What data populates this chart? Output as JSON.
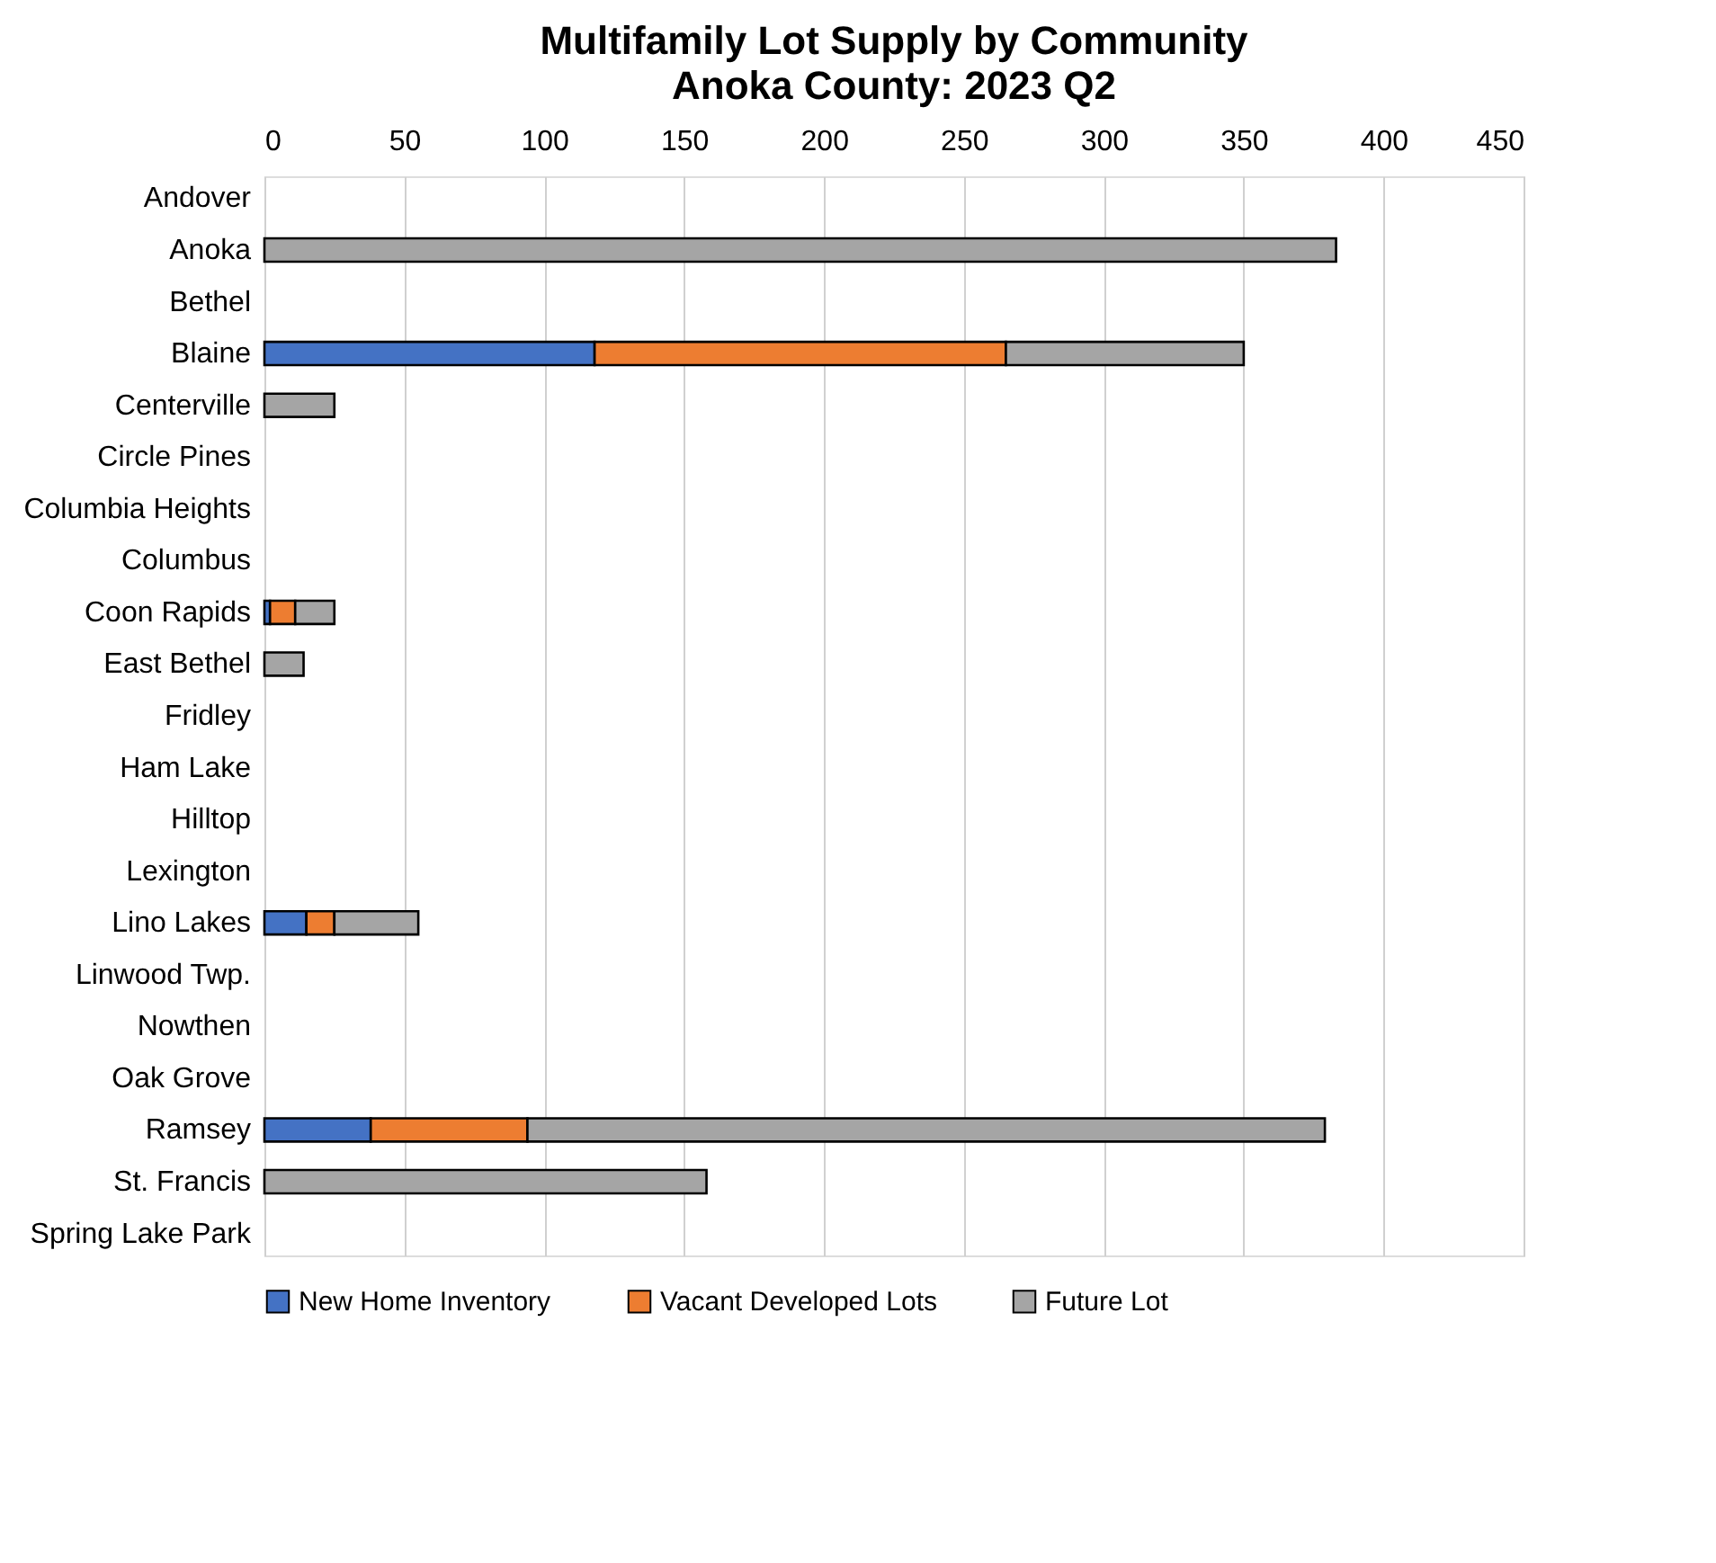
{
  "chart_data": {
    "type": "bar",
    "orientation": "horizontal",
    "stacked": true,
    "title": "Multifamily Lot Supply by Community",
    "subtitle": "Anoka County:  2023 Q2",
    "categories": [
      "Andover",
      "Anoka",
      "Bethel",
      "Blaine",
      "Centerville",
      "Circle Pines",
      "Columbia Heights",
      "Columbus",
      "Coon Rapids",
      "East Bethel",
      "Fridley",
      "Ham Lake",
      "Hilltop",
      "Lexington",
      "Lino Lakes",
      "Linwood Twp.",
      "Nowthen",
      "Oak Grove",
      "Ramsey",
      "St. Francis",
      "Spring Lake Park"
    ],
    "series": [
      {
        "name": "New Home Inventory",
        "color": "#4472c4",
        "values": [
          0,
          0,
          0,
          118,
          0,
          0,
          0,
          0,
          2,
          0,
          0,
          0,
          0,
          0,
          15,
          0,
          0,
          0,
          38,
          0,
          0
        ]
      },
      {
        "name": "Vacant Developed Lots",
        "color": "#ed7d31",
        "values": [
          0,
          0,
          0,
          147,
          0,
          0,
          0,
          0,
          9,
          0,
          0,
          0,
          0,
          0,
          10,
          0,
          0,
          0,
          56,
          0,
          0
        ]
      },
      {
        "name": "Future Lot",
        "color": "#a5a5a5",
        "values": [
          0,
          383,
          0,
          85,
          25,
          0,
          0,
          0,
          14,
          14,
          0,
          0,
          0,
          0,
          30,
          0,
          0,
          0,
          285,
          158,
          0
        ]
      }
    ],
    "xlim": [
      0,
      450
    ],
    "xticks": [
      0,
      50,
      100,
      150,
      200,
      250,
      300,
      350,
      400,
      450
    ],
    "grid": "x",
    "legend": "bottom"
  }
}
